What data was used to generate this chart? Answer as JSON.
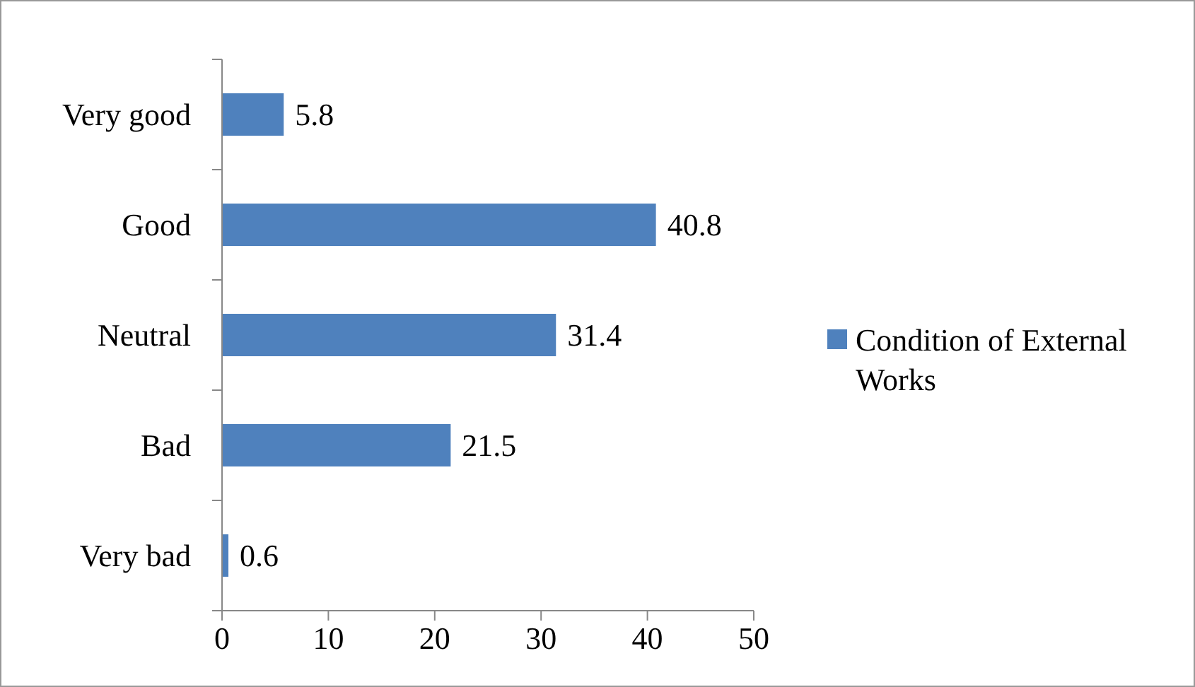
{
  "chart_data": {
    "type": "bar",
    "orientation": "horizontal",
    "categories": [
      "Very good",
      "Good",
      "Neutral",
      "Bad",
      "Very bad"
    ],
    "series": [
      {
        "name": "Condition of External Works",
        "color": "#4f81bd",
        "values": [
          5.8,
          40.8,
          31.4,
          21.5,
          0.6
        ]
      }
    ],
    "xlim": [
      0,
      50
    ],
    "xticks": [
      0,
      10,
      20,
      30,
      40,
      50
    ],
    "data_labels": true,
    "legend": "right",
    "grid": false
  }
}
